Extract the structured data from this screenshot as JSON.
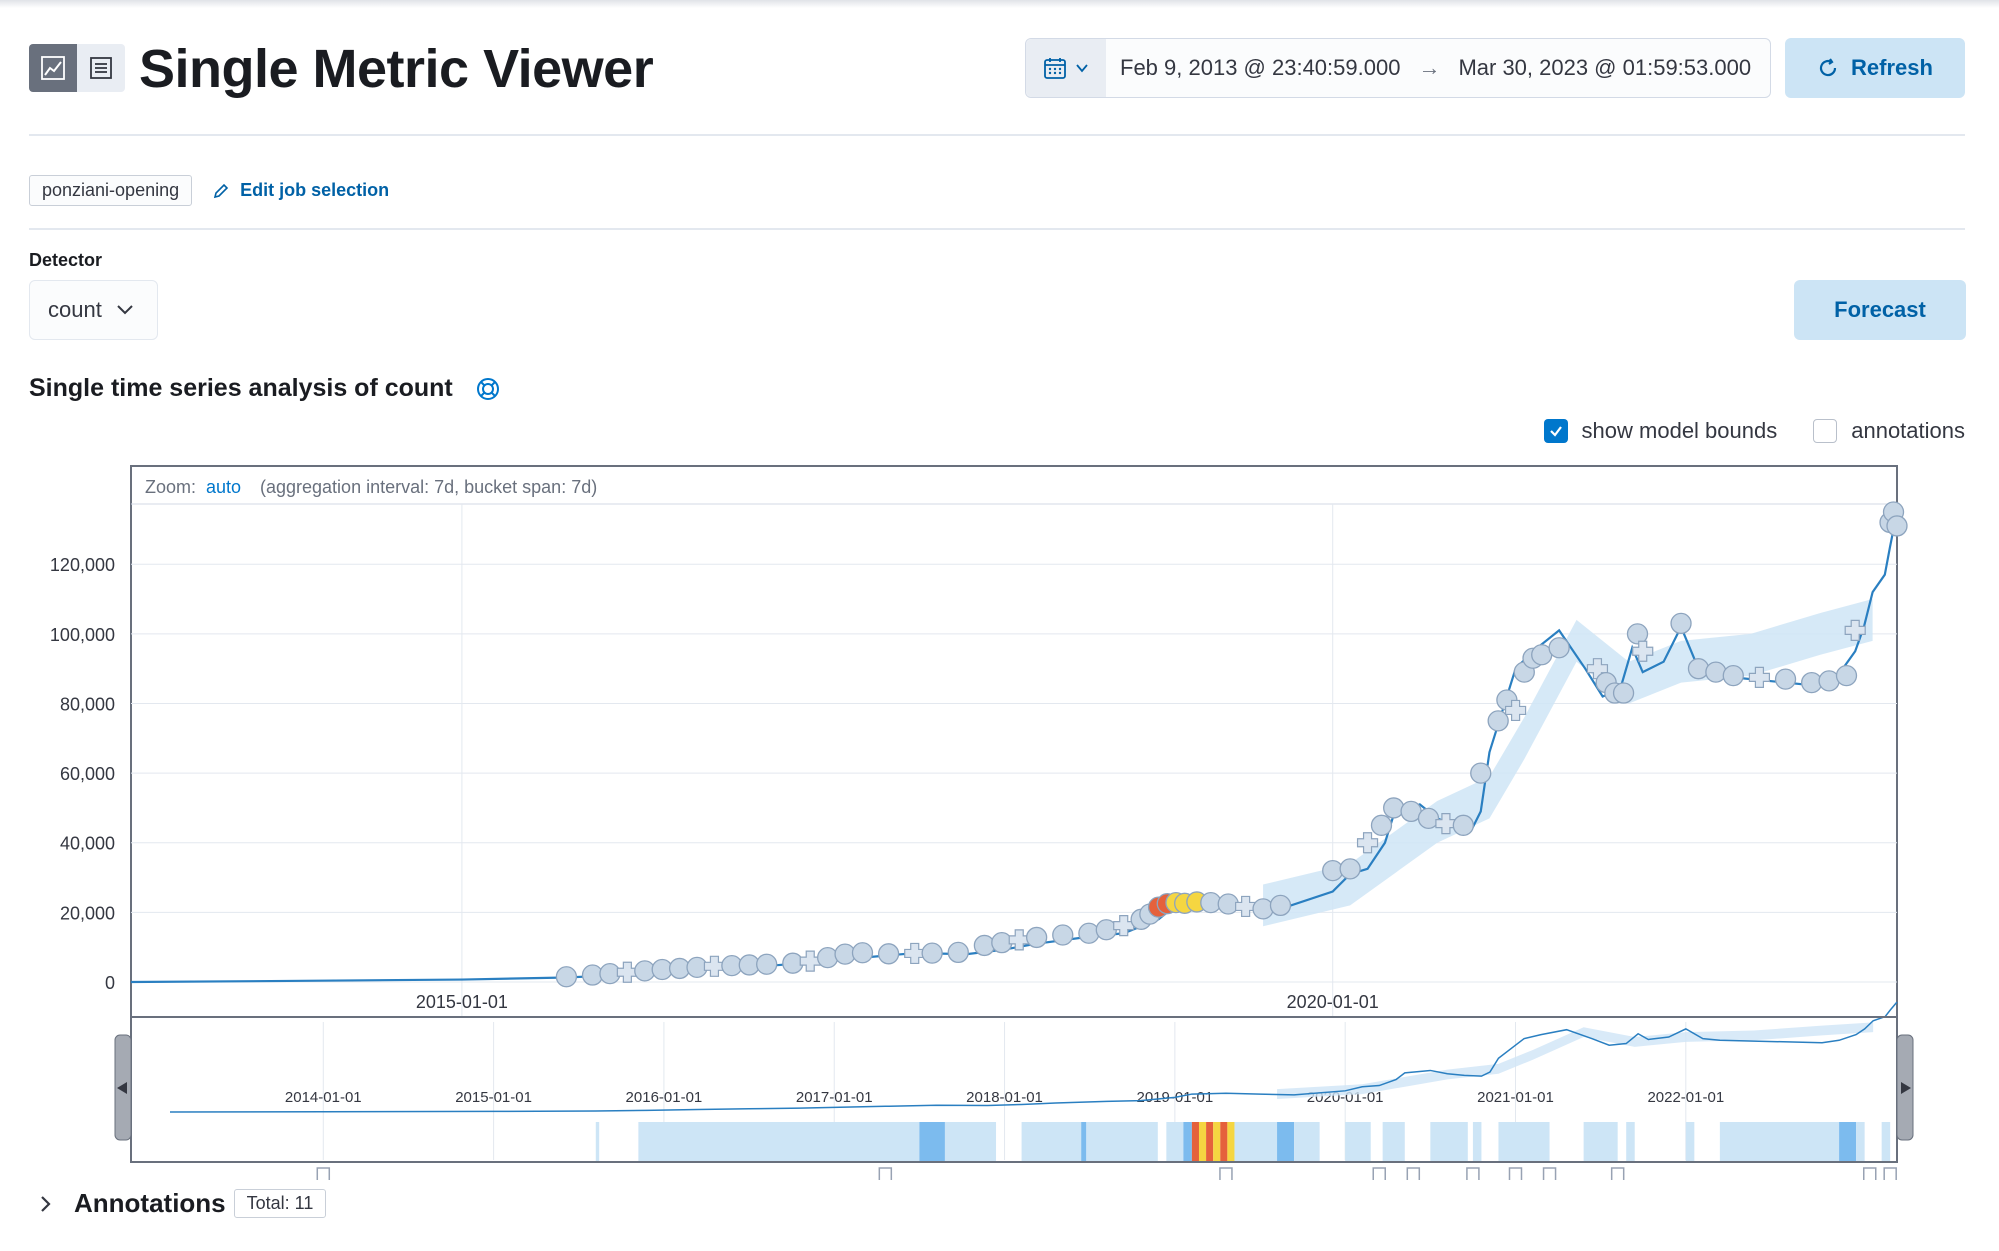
{
  "header": {
    "title": "Single Metric Viewer",
    "date_start": "Feb 9, 2013 @ 23:40:59.000",
    "date_end": "Mar 30, 2023 @ 01:59:53.000",
    "refresh_label": "Refresh"
  },
  "job": {
    "badge": "ponziani-opening",
    "edit_label": "Edit job selection"
  },
  "detector": {
    "label": "Detector",
    "value": "count"
  },
  "forecast_label": "Forecast",
  "analysis_title": "Single time series analysis of count",
  "options": {
    "show_model_bounds": "show model bounds",
    "show_model_bounds_checked": true,
    "annotations": "annotations",
    "annotations_checked": false
  },
  "zoom": {
    "label": "Zoom:",
    "value": "auto",
    "info": "(aggregation interval: 7d, bucket span: 7d)"
  },
  "annotations_panel": {
    "title": "Annotations",
    "total": "Total: 11"
  },
  "colors": {
    "line": "#2a7fc1",
    "bounds": "#cfe5f6",
    "marker": "#c8d7e6",
    "anomaly_major": "#e5613c",
    "anomaly_minor": "#f5d641",
    "swim_low": "#cde5f6",
    "swim_mid": "#7cbbee"
  },
  "chart_data": {
    "type": "line",
    "title": "Single time series analysis of count",
    "xlabel": "",
    "ylabel": "",
    "x_ticks": [
      "2015-01-01",
      "2020-01-01"
    ],
    "context_x_ticks": [
      "2014-01-01",
      "2015-01-01",
      "2016-01-01",
      "2017-01-01",
      "2018-01-01",
      "2019-01-01",
      "2020-01-01",
      "2021-01-01",
      "2022-01-01"
    ],
    "y_ticks": [
      "0",
      "20,000",
      "40,000",
      "60,000",
      "80,000",
      "100,000",
      "120,000"
    ],
    "xlim": [
      2013.1,
      2023.24
    ],
    "ylim": [
      0,
      135000
    ],
    "series": [
      {
        "name": "count",
        "points": [
          [
            2013.1,
            0
          ],
          [
            2014.0,
            300
          ],
          [
            2015.0,
            700
          ],
          [
            2015.6,
            1300
          ],
          [
            2015.9,
            2000
          ],
          [
            2016.2,
            3000
          ],
          [
            2016.5,
            4000
          ],
          [
            2016.8,
            4800
          ],
          [
            2017.0,
            5600
          ],
          [
            2017.3,
            7000
          ],
          [
            2017.6,
            8300
          ],
          [
            2017.9,
            8000
          ],
          [
            2018.1,
            9200
          ],
          [
            2018.3,
            11000
          ],
          [
            2018.6,
            13000
          ],
          [
            2018.8,
            14000
          ],
          [
            2019.0,
            18000
          ],
          [
            2019.1,
            22000
          ],
          [
            2019.3,
            23000
          ],
          [
            2019.5,
            22000
          ],
          [
            2019.7,
            21000
          ],
          [
            2020.0,
            26000
          ],
          [
            2020.1,
            31000
          ],
          [
            2020.2,
            32500
          ],
          [
            2020.3,
            40000
          ],
          [
            2020.35,
            48000
          ],
          [
            2020.5,
            51000
          ],
          [
            2020.6,
            47000
          ],
          [
            2020.7,
            45000
          ],
          [
            2020.8,
            44000
          ],
          [
            2020.85,
            49000
          ],
          [
            2020.9,
            66000
          ],
          [
            2021.0,
            82000
          ],
          [
            2021.05,
            90000
          ],
          [
            2021.15,
            95000
          ],
          [
            2021.3,
            101000
          ],
          [
            2021.45,
            90000
          ],
          [
            2021.55,
            82000
          ],
          [
            2021.65,
            84000
          ],
          [
            2021.72,
            96000
          ],
          [
            2021.78,
            89000
          ],
          [
            2021.9,
            92000
          ],
          [
            2022.0,
            102000
          ],
          [
            2022.1,
            90000
          ],
          [
            2022.2,
            88000
          ],
          [
            2022.4,
            87000
          ],
          [
            2022.6,
            86000
          ],
          [
            2022.8,
            85000
          ],
          [
            2022.9,
            88000
          ],
          [
            2023.0,
            95000
          ],
          [
            2023.05,
            102000
          ],
          [
            2023.1,
            112000
          ],
          [
            2023.17,
            117000
          ],
          [
            2023.2,
            125000
          ],
          [
            2023.24,
            135000
          ]
        ]
      },
      {
        "name": "model bounds",
        "points": [
          [
            2019.6,
            24000
          ],
          [
            2020.1,
            30000
          ],
          [
            2020.6,
            48000
          ],
          [
            2020.9,
            55000
          ],
          [
            2021.1,
            72000
          ],
          [
            2021.4,
            100000
          ],
          [
            2021.7,
            88000
          ],
          [
            2022.0,
            94000
          ],
          [
            2022.4,
            96000
          ],
          [
            2022.8,
            102000
          ],
          [
            2023.1,
            106000
          ]
        ]
      }
    ],
    "anomalies": [
      [
        2015.6,
        1500,
        "minor"
      ],
      [
        2015.75,
        2000,
        "minor"
      ],
      [
        2015.85,
        2400,
        "minor"
      ],
      [
        2015.95,
        2800,
        "minor"
      ],
      [
        2016.05,
        3200,
        "minor"
      ],
      [
        2016.15,
        3600,
        "minor"
      ],
      [
        2016.25,
        3900,
        "minor"
      ],
      [
        2016.35,
        4200,
        "minor"
      ],
      [
        2016.45,
        4500,
        "minor"
      ],
      [
        2016.55,
        4700,
        "minor"
      ],
      [
        2016.65,
        4900,
        "minor"
      ],
      [
        2016.75,
        5100,
        "minor"
      ],
      [
        2016.9,
        5400,
        "minor"
      ],
      [
        2017.0,
        6000,
        "minor"
      ],
      [
        2017.1,
        7000,
        "minor"
      ],
      [
        2017.2,
        8000,
        "minor"
      ],
      [
        2017.3,
        8400,
        "minor"
      ],
      [
        2017.45,
        8100,
        "minor"
      ],
      [
        2017.6,
        8200,
        "minor"
      ],
      [
        2017.7,
        8300,
        "minor"
      ],
      [
        2017.85,
        8500,
        "minor"
      ],
      [
        2018.0,
        10500,
        "minor"
      ],
      [
        2018.1,
        11300,
        "minor"
      ],
      [
        2018.2,
        12100,
        "minor"
      ],
      [
        2018.3,
        12800,
        "minor"
      ],
      [
        2018.45,
        13500,
        "minor"
      ],
      [
        2018.6,
        14000,
        "minor"
      ],
      [
        2018.7,
        15000,
        "minor"
      ],
      [
        2018.8,
        16200,
        "minor"
      ],
      [
        2018.9,
        18000,
        "minor"
      ],
      [
        2018.95,
        19500,
        "minor"
      ],
      [
        2019.0,
        21500,
        "major"
      ],
      [
        2019.05,
        22500,
        "major"
      ],
      [
        2019.1,
        22800,
        "warning"
      ],
      [
        2019.15,
        22600,
        "warning"
      ],
      [
        2019.22,
        23000,
        "warning"
      ],
      [
        2019.3,
        22800,
        "minor"
      ],
      [
        2019.4,
        22400,
        "minor"
      ],
      [
        2019.5,
        21700,
        "minor"
      ],
      [
        2019.6,
        21000,
        "minor"
      ],
      [
        2019.7,
        22000,
        "minor"
      ],
      [
        2020.0,
        32000,
        "minor"
      ],
      [
        2020.1,
        32500,
        "minor"
      ],
      [
        2020.2,
        40000,
        "minor"
      ],
      [
        2020.28,
        45000,
        "minor"
      ],
      [
        2020.35,
        50000,
        "minor"
      ],
      [
        2020.45,
        49000,
        "minor"
      ],
      [
        2020.55,
        47000,
        "minor"
      ],
      [
        2020.65,
        45500,
        "minor"
      ],
      [
        2020.75,
        45000,
        "minor"
      ],
      [
        2020.85,
        60000,
        "minor"
      ],
      [
        2020.95,
        75000,
        "minor"
      ],
      [
        2021.0,
        81000,
        "minor"
      ],
      [
        2021.05,
        78000,
        "minor"
      ],
      [
        2021.1,
        89000,
        "minor"
      ],
      [
        2021.15,
        93000,
        "minor"
      ],
      [
        2021.2,
        94000,
        "minor"
      ],
      [
        2021.3,
        96000,
        "minor"
      ],
      [
        2021.52,
        90000,
        "minor"
      ],
      [
        2021.57,
        86000,
        "minor"
      ],
      [
        2021.62,
        83000,
        "minor"
      ],
      [
        2021.67,
        83000,
        "minor"
      ],
      [
        2021.75,
        100000,
        "minor"
      ],
      [
        2021.78,
        95000,
        "minor"
      ],
      [
        2022.0,
        103000,
        "minor"
      ],
      [
        2022.1,
        90000,
        "minor"
      ],
      [
        2022.2,
        89000,
        "minor"
      ],
      [
        2022.3,
        88000,
        "minor"
      ],
      [
        2022.45,
        87500,
        "minor"
      ],
      [
        2022.6,
        87000,
        "minor"
      ],
      [
        2022.75,
        86000,
        "minor"
      ],
      [
        2022.85,
        86500,
        "minor"
      ],
      [
        2022.95,
        88000,
        "minor"
      ],
      [
        2023.0,
        101000,
        "minor"
      ],
      [
        2023.2,
        132000,
        "minor"
      ],
      [
        2023.22,
        135000,
        "minor"
      ],
      [
        2023.24,
        131000,
        "minor"
      ]
    ],
    "annotation_markers": [
      2014.0,
      2017.3,
      2019.3,
      2020.2,
      2020.4,
      2020.75,
      2021.0,
      2021.2,
      2021.6,
      2023.08,
      2023.2
    ]
  }
}
